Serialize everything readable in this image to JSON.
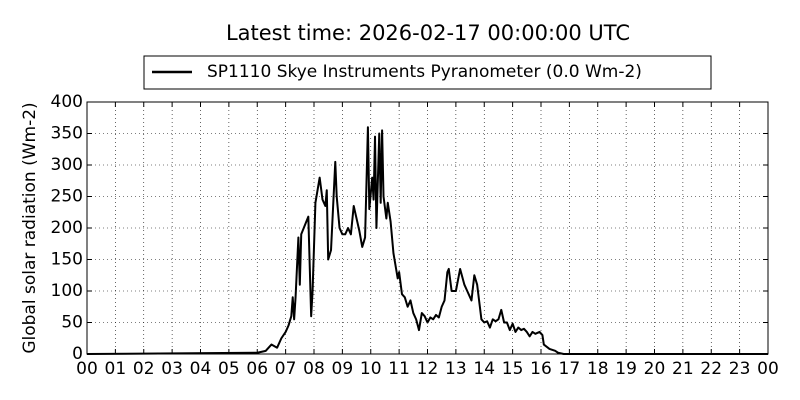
{
  "chart_data": {
    "type": "line",
    "title": "Latest time: 2026-02-17 00:00:00 UTC",
    "y_label": "Global solar radiation (Wm-2)",
    "x": [
      0,
      6,
      6.3,
      6.5,
      6.7,
      6.85,
      7,
      7.1,
      7.2,
      7.25,
      7.3,
      7.35,
      7.45,
      7.5,
      7.55,
      7.8,
      7.9,
      7.95,
      8.05,
      8.2,
      8.3,
      8.4,
      8.45,
      8.5,
      8.6,
      8.75,
      8.8,
      8.9,
      9,
      9.1,
      9.2,
      9.3,
      9.4,
      9.5,
      9.6,
      9.7,
      9.8,
      9.9,
      9.95,
      10.05,
      10.1,
      10.15,
      10.2,
      10.3,
      10.35,
      10.4,
      10.45,
      10.55,
      10.6,
      10.7,
      10.8,
      10.95,
      11,
      11.1,
      11.2,
      11.3,
      11.4,
      11.5,
      11.6,
      11.7,
      11.8,
      11.9,
      12,
      12.1,
      12.2,
      12.3,
      12.4,
      12.5,
      12.6,
      12.7,
      12.75,
      12.85,
      13,
      13.15,
      13.3,
      13.4,
      13.55,
      13.65,
      13.75,
      13.9,
      14,
      14.1,
      14.2,
      14.3,
      14.4,
      14.5,
      14.6,
      14.7,
      14.8,
      14.9,
      15,
      15.1,
      15.2,
      15.3,
      15.4,
      15.5,
      15.6,
      15.7,
      15.8,
      15.95,
      16.05,
      16.1,
      16.3,
      16.5,
      16.6,
      16.8,
      24
    ],
    "series": [
      {
        "name": "SP1110 Skye Instruments Pyranometer (0.0 Wm-2)",
        "color": "#000000",
        "values": [
          0,
          2,
          5,
          15,
          10,
          25,
          35,
          45,
          60,
          90,
          55,
          90,
          185,
          110,
          190,
          218,
          60,
          100,
          240,
          280,
          245,
          235,
          260,
          150,
          165,
          305,
          250,
          200,
          190,
          190,
          200,
          190,
          235,
          215,
          195,
          170,
          185,
          360,
          230,
          280,
          245,
          345,
          200,
          350,
          240,
          355,
          250,
          215,
          240,
          210,
          160,
          120,
          130,
          95,
          90,
          75,
          85,
          65,
          55,
          38,
          65,
          60,
          50,
          58,
          55,
          62,
          58,
          75,
          85,
          130,
          135,
          100,
          100,
          135,
          110,
          100,
          85,
          125,
          110,
          55,
          50,
          52,
          42,
          55,
          52,
          55,
          70,
          50,
          50,
          38,
          48,
          35,
          42,
          38,
          40,
          35,
          28,
          35,
          32,
          35,
          30,
          15,
          8,
          5,
          2,
          0,
          0
        ]
      }
    ],
    "xlim": [
      0,
      24
    ],
    "xticks": [
      {
        "value": 0,
        "label": "00"
      },
      {
        "value": 1,
        "label": "01"
      },
      {
        "value": 2,
        "label": "02"
      },
      {
        "value": 3,
        "label": "03"
      },
      {
        "value": 4,
        "label": "04"
      },
      {
        "value": 5,
        "label": "05"
      },
      {
        "value": 6,
        "label": "06"
      },
      {
        "value": 7,
        "label": "07"
      },
      {
        "value": 8,
        "label": "08"
      },
      {
        "value": 9,
        "label": "09"
      },
      {
        "value": 10,
        "label": "10"
      },
      {
        "value": 11,
        "label": "11"
      },
      {
        "value": 12,
        "label": "12"
      },
      {
        "value": 13,
        "label": "13"
      },
      {
        "value": 14,
        "label": "14"
      },
      {
        "value": 15,
        "label": "15"
      },
      {
        "value": 16,
        "label": "16"
      },
      {
        "value": 17,
        "label": "17"
      },
      {
        "value": 18,
        "label": "18"
      },
      {
        "value": 19,
        "label": "19"
      },
      {
        "value": 20,
        "label": "20"
      },
      {
        "value": 21,
        "label": "21"
      },
      {
        "value": 22,
        "label": "22"
      },
      {
        "value": 23,
        "label": "23"
      },
      {
        "value": 24,
        "label": "00"
      }
    ],
    "ylim": [
      0,
      400
    ],
    "yticks": [
      0,
      50,
      100,
      150,
      200,
      250,
      300,
      350,
      400
    ],
    "grid": true
  }
}
